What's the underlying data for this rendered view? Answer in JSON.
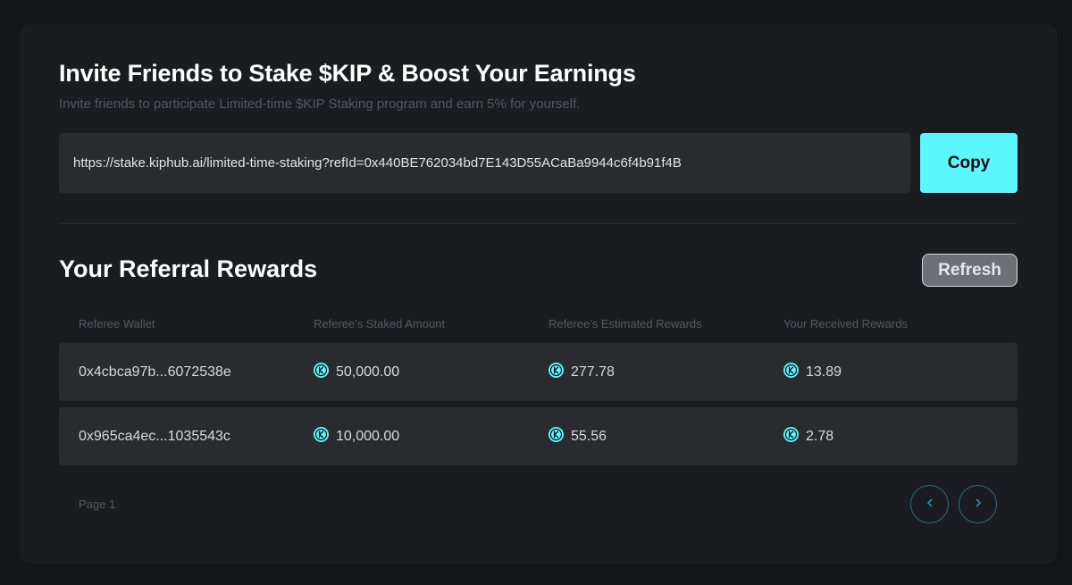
{
  "invite": {
    "title": "Invite Friends to Stake $KIP & Boost Your Earnings",
    "subtitle": "Invite friends to participate Limited-time $KIP Staking program and earn 5% for yourself.",
    "link": "https://stake.kiphub.ai/limited-time-staking?refId=0x440BE762034bd7E143D55ACaBa9944c6f4b91f4B",
    "copy_label": "Copy"
  },
  "rewards": {
    "title": "Your Referral Rewards",
    "refresh_label": "Refresh",
    "columns": [
      "Referee Wallet",
      "Referee's Staked Amount",
      "Referee's Estimated Rewards",
      "Your Received Rewards"
    ],
    "rows": [
      {
        "wallet": "0x4cbca97b...6072538e",
        "staked": "50,000.00",
        "estimated": "277.78",
        "received": "13.89"
      },
      {
        "wallet": "0x965ca4ec...1035543c",
        "staked": "10,000.00",
        "estimated": "55.56",
        "received": "2.78"
      }
    ],
    "page_label": "Page 1"
  },
  "icons": {
    "token": "kip-token-icon",
    "prev": "chevron-left-icon",
    "next": "chevron-right-icon"
  },
  "colors": {
    "accent": "#5cf6ff",
    "background": "#141518",
    "card": "#1b1c1f",
    "field": "#2a2b2f",
    "pager_border": "#1e6f88"
  }
}
